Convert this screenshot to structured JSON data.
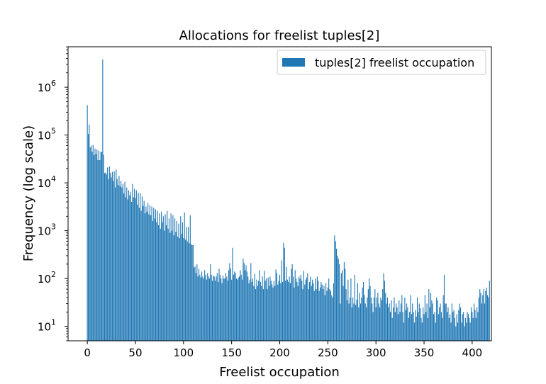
{
  "chart_data": {
    "type": "bar",
    "title": "Allocations for freelist tuples[2]",
    "xlabel": "Freelist occupation",
    "ylabel": "Frequency (log scale)",
    "yscale": "log",
    "xlim": [
      -20,
      420
    ],
    "ylim": [
      5,
      7000000
    ],
    "x_ticks": [
      0,
      50,
      100,
      150,
      200,
      250,
      300,
      350,
      400
    ],
    "y_ticks": [
      10,
      100,
      1000,
      10000,
      100000,
      1000000
    ],
    "y_tick_labels": [
      {
        "base": "10",
        "exp": "1"
      },
      {
        "base": "10",
        "exp": "2"
      },
      {
        "base": "10",
        "exp": "3"
      },
      {
        "base": "10",
        "exp": "4"
      },
      {
        "base": "10",
        "exp": "5"
      },
      {
        "base": "10",
        "exp": "6"
      }
    ],
    "legend": {
      "position": "top-right"
    },
    "grid": false,
    "color": "#1f77b4",
    "series": [
      {
        "name": "tuples[2] freelist occupation",
        "bin_start": 0,
        "bin_width": 1,
        "values": [
          420000,
          105000,
          165000,
          55000,
          60000,
          45000,
          62000,
          38000,
          52000,
          40000,
          50000,
          30000,
          47000,
          30000,
          44000,
          45000,
          3800000,
          39000,
          16000,
          16500,
          15000,
          21000,
          12000,
          22000,
          16000,
          13000,
          17000,
          11000,
          17500,
          8000,
          19000,
          12000,
          9000,
          14000,
          8500,
          11000,
          8000,
          9500,
          6000,
          10500,
          5000,
          8000,
          4500,
          7000,
          5500,
          6500,
          4000,
          9500,
          5000,
          7500,
          4800,
          7000,
          3500,
          6200,
          3000,
          6000,
          2600,
          5200,
          3300,
          4200,
          2300,
          3200,
          2500,
          3800,
          2200,
          3400,
          2100,
          3200,
          1600,
          3000,
          1800,
          2800,
          1500,
          2600,
          1300,
          2300,
          1100,
          2500,
          1500,
          2000,
          1000,
          2200,
          1300,
          2600,
          1100,
          1800,
          900,
          2300,
          1000,
          2100,
          800,
          1800,
          950,
          1600,
          750,
          1400,
          700,
          2000,
          850,
          1500,
          700,
          2400,
          650,
          1200,
          600,
          1200,
          550,
          2100,
          520,
          500,
          500,
          170,
          180,
          130,
          200,
          110,
          160,
          120,
          105,
          140,
          110,
          100,
          150,
          120,
          95,
          130,
          110,
          100,
          200,
          120,
          90,
          115,
          110,
          90,
          110,
          130,
          85,
          160,
          120,
          100,
          80,
          115,
          100,
          100,
          130,
          110,
          90,
          150,
          210,
          160,
          95,
          440,
          120,
          140,
          130,
          100,
          95,
          105,
          110,
          150,
          120,
          95,
          260,
          210,
          150,
          190,
          140,
          110,
          80,
          95,
          210,
          85,
          100,
          70,
          125,
          60,
          95,
          70,
          90,
          150,
          85,
          70,
          110,
          60,
          145,
          90,
          100,
          60,
          105,
          70,
          110,
          90,
          75,
          65,
          90,
          70,
          155,
          130,
          75,
          90,
          120,
          80,
          240,
          85,
          560,
          440,
          90,
          175,
          95,
          85,
          110,
          80,
          160,
          200,
          110,
          65,
          150,
          100,
          85,
          70,
          110,
          100,
          120,
          90,
          60,
          145,
          75,
          95,
          105,
          130,
          60,
          85,
          110,
          70,
          95,
          80,
          55,
          100,
          60,
          110,
          90,
          55,
          65,
          85,
          75,
          60,
          70,
          45,
          80,
          55,
          65,
          100,
          60,
          55,
          45,
          40,
          80,
          800,
          600,
          420,
          300,
          260,
          200,
          30,
          130,
          150,
          70,
          220,
          160,
          60,
          35,
          95,
          30,
          40,
          100,
          25,
          40,
          30,
          120,
          28,
          36,
          80,
          25,
          50,
          30,
          40,
          65,
          85,
          45,
          30,
          25,
          40,
          60,
          100,
          70,
          40,
          30,
          20,
          40,
          60,
          25,
          40,
          50,
          30,
          25,
          40,
          35,
          60,
          130,
          90,
          50,
          30,
          40,
          25,
          30,
          20,
          35,
          15,
          25,
          40,
          20,
          30,
          25,
          18,
          35,
          20,
          30,
          45,
          20,
          12,
          40,
          22,
          30,
          25,
          15,
          20,
          45,
          18,
          30,
          20,
          12,
          22,
          16,
          40,
          20,
          30,
          24,
          15,
          12,
          25,
          18,
          45,
          20,
          30,
          15,
          60,
          25,
          50,
          35,
          30,
          18,
          20,
          12,
          40,
          35,
          18,
          25,
          30,
          20,
          15,
          45,
          120,
          30,
          30,
          20,
          25,
          15,
          18,
          12,
          30,
          20,
          22,
          15,
          10,
          18,
          12,
          22,
          30,
          25,
          12,
          18,
          20,
          10,
          15,
          12,
          20,
          18,
          15,
          12,
          25,
          20,
          15,
          30,
          22,
          15,
          25,
          20,
          40,
          60,
          50,
          30,
          45,
          60,
          30,
          55,
          65,
          45,
          40,
          90
        ]
      }
    ]
  }
}
